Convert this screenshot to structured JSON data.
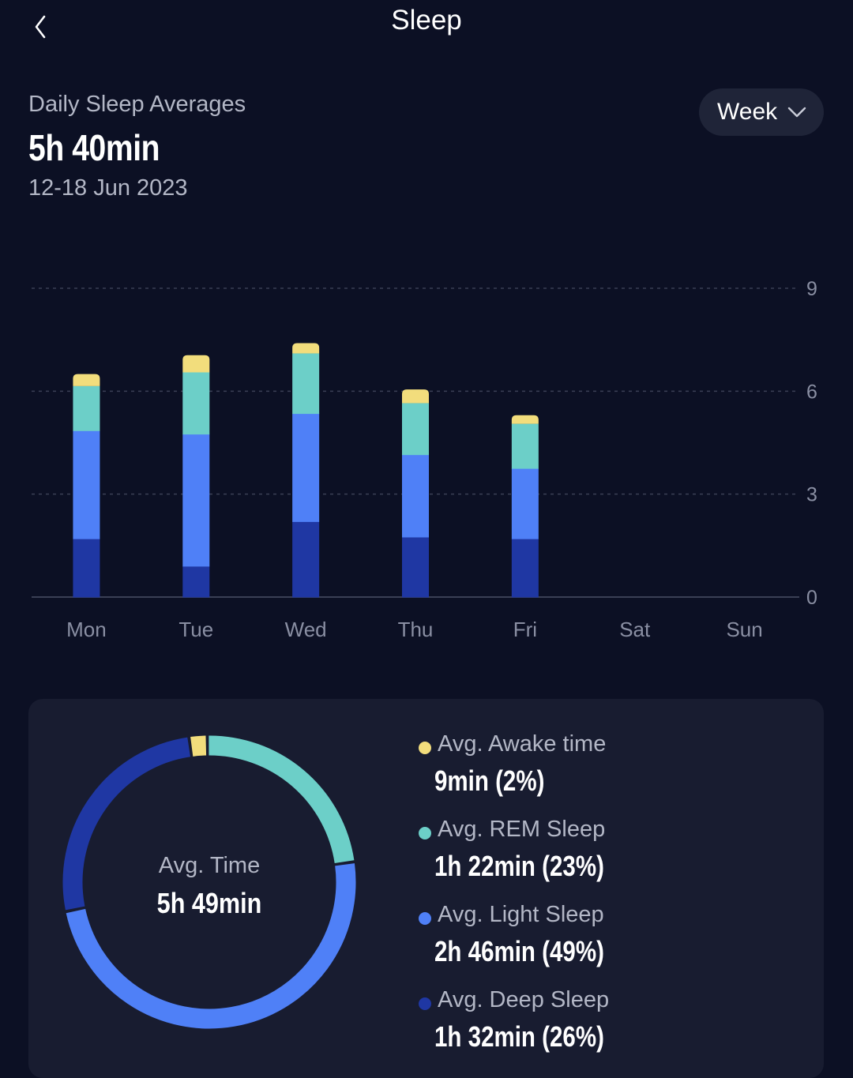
{
  "header": {
    "title": "Sleep",
    "back_icon": "chevron-left-icon"
  },
  "summary": {
    "label": "Daily Sleep Averages",
    "value": "5h 40min",
    "date_range": "12-18 Jun 2023"
  },
  "period_selector": {
    "selected": "Week",
    "icon": "chevron-down-icon"
  },
  "colors": {
    "background": "#0c1024",
    "card": "#181c30",
    "awake": "#f2dd7c",
    "rem": "#6ccfc8",
    "light": "#4f80f7",
    "deep": "#1f37a3"
  },
  "chart_data": {
    "type": "bar",
    "stacked": true,
    "categories": [
      "Mon",
      "Tue",
      "Wed",
      "Thu",
      "Fri",
      "Sat",
      "Sun"
    ],
    "series": [
      {
        "key": "deep",
        "values": [
          1.7,
          0.9,
          2.2,
          1.75,
          1.7,
          0,
          0
        ]
      },
      {
        "key": "light",
        "values": [
          3.15,
          3.85,
          3.15,
          2.4,
          2.05,
          0,
          0
        ]
      },
      {
        "key": "rem",
        "values": [
          1.3,
          1.8,
          1.75,
          1.5,
          1.3,
          0,
          0
        ]
      },
      {
        "key": "awake",
        "values": [
          0.35,
          0.5,
          0.3,
          0.4,
          0.25,
          0,
          0
        ]
      }
    ],
    "y_ticks": [
      "0",
      "3",
      "6",
      "9"
    ],
    "ylim": [
      0,
      9
    ],
    "grid": "dashed horizontal",
    "y_axis_side": "right"
  },
  "breakdown": {
    "center_label": "Avg. Time",
    "center_value": "5h 49min",
    "items": [
      {
        "key": "awake",
        "label": "Avg. Awake time",
        "value": "9min (2%)",
        "percent": 2
      },
      {
        "key": "rem",
        "label": "Avg. REM Sleep",
        "value": "1h 22min (23%)",
        "percent": 23
      },
      {
        "key": "light",
        "label": "Avg. Light Sleep",
        "value": "2h 46min (49%)",
        "percent": 49
      },
      {
        "key": "deep",
        "label": "Avg. Deep Sleep",
        "value": "1h 32min (26%)",
        "percent": 26
      }
    ]
  }
}
